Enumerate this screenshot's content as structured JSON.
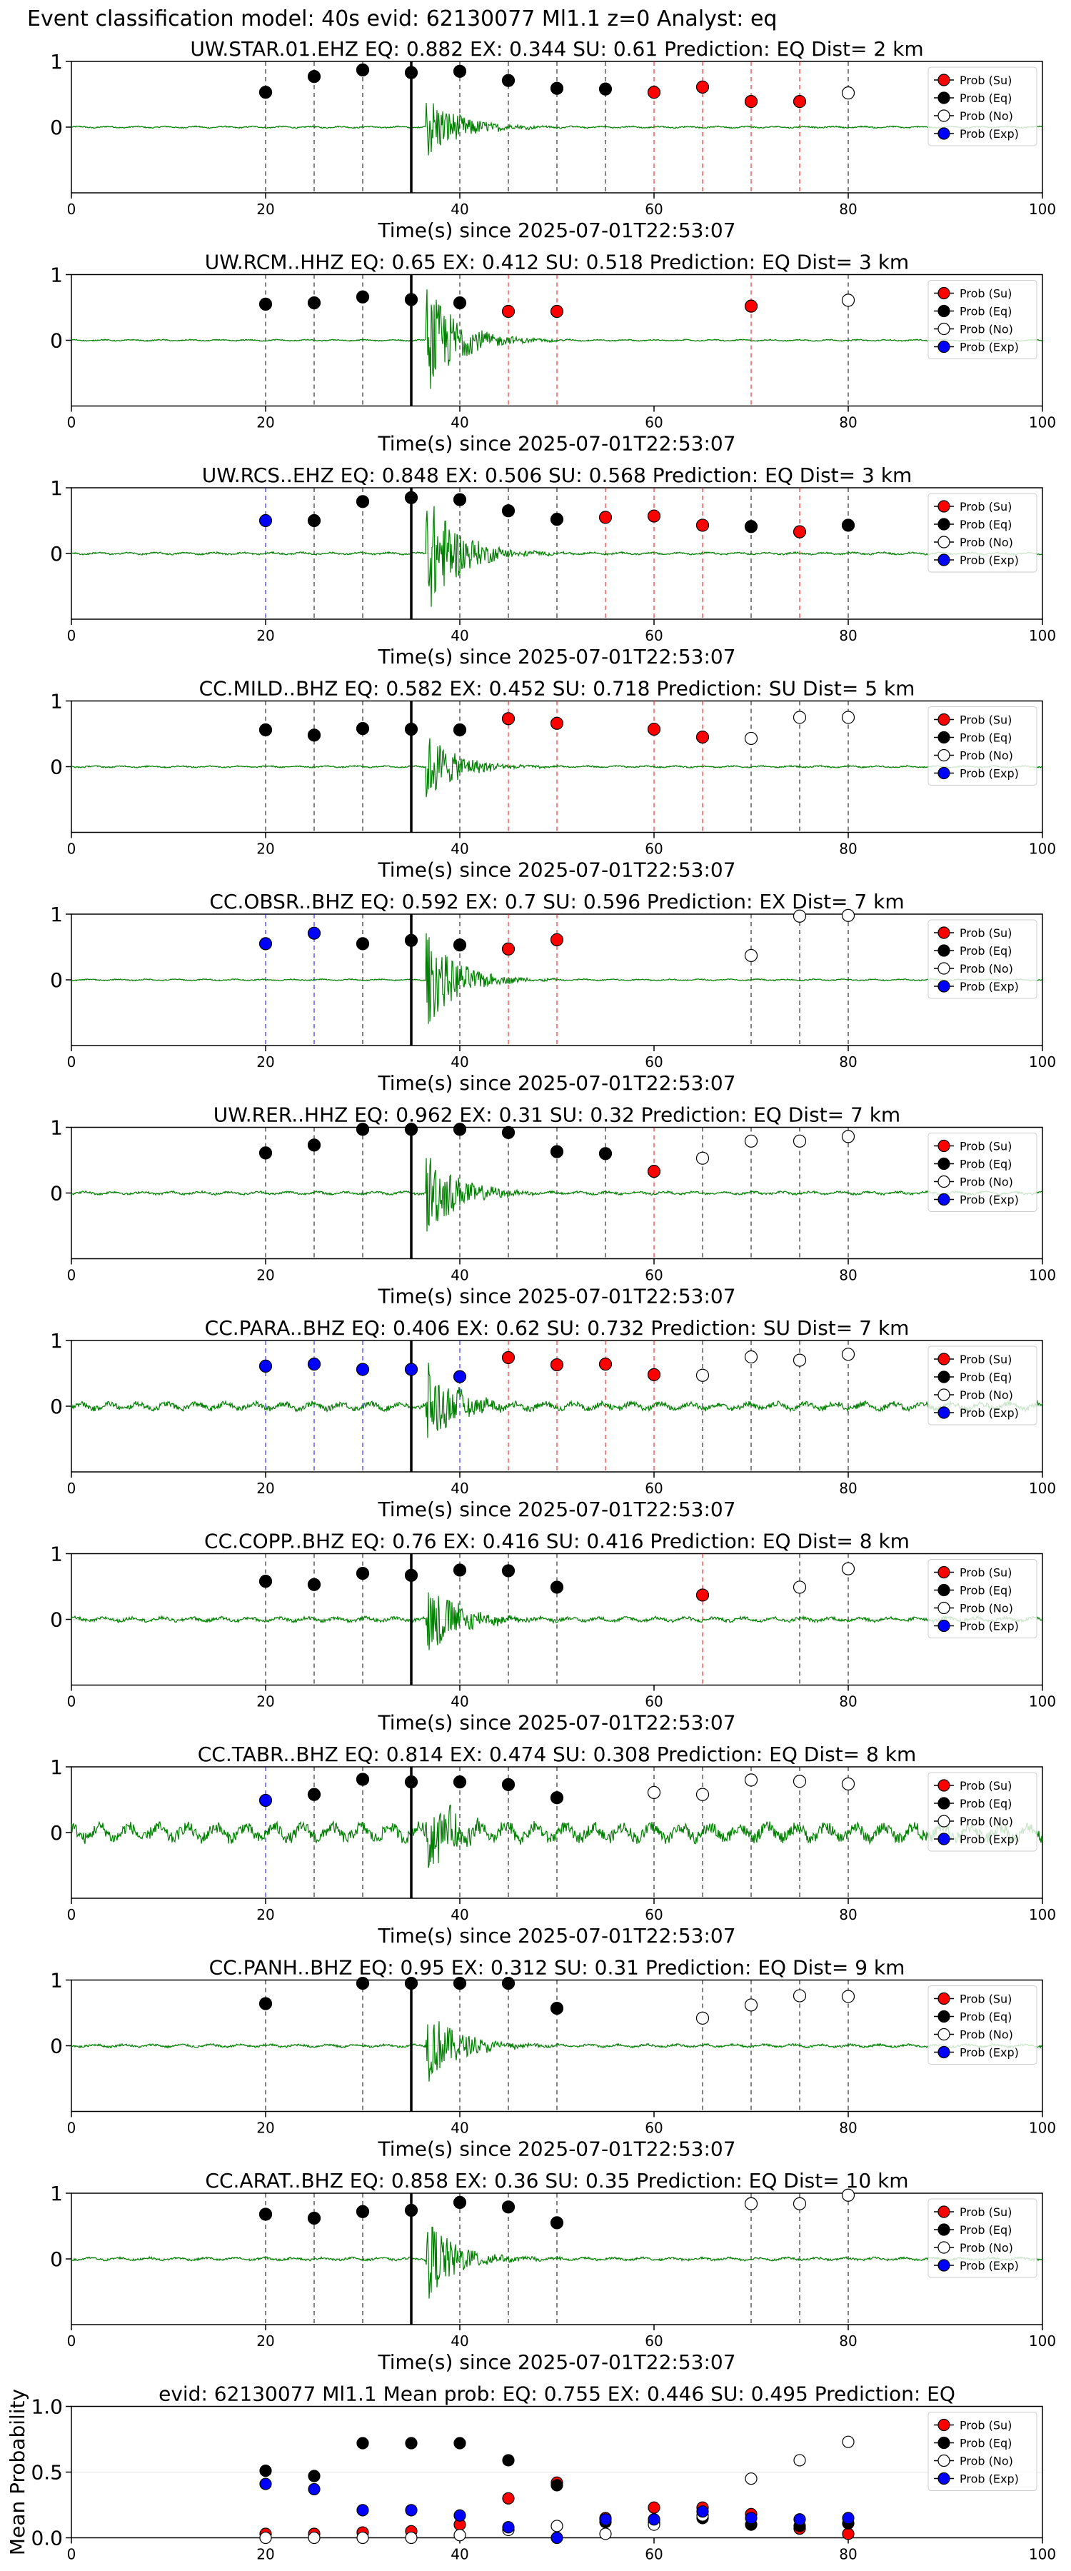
{
  "suptitle": "Event classification model: 40s evid: 62130077 Ml1.1 z=0 Analyst: eq",
  "colors": {
    "trace": "#008000",
    "su": "#ff0000",
    "eq": "#000000",
    "no": "#ffffff",
    "exp": "#0000ff",
    "grid": "#e6e6e6"
  },
  "legend": [
    "Prob (Su)",
    "Prob (Eq)",
    "Prob (No)",
    "Prob (Exp)"
  ],
  "xlabel": "Time(s) since 2025-07-01T22:53:07",
  "chart_data": [
    {
      "type": "scatter",
      "title": "UW.STAR.01.EHZ   EQ: 0.882  EX: 0.344  SU: 0.61    Prediction: EQ    Dist= 2 km",
      "xlim": [
        0,
        100
      ],
      "ylim": [
        -1,
        1
      ],
      "xticks": [
        0,
        20,
        40,
        60,
        80,
        100
      ],
      "yticks": [
        1,
        0
      ],
      "pick": 35,
      "amp": 0.55,
      "noise": 0.012,
      "points": [
        {
          "x": 20,
          "y": 0.53,
          "c": "eq"
        },
        {
          "x": 25,
          "y": 0.77,
          "c": "eq"
        },
        {
          "x": 30,
          "y": 0.87,
          "c": "eq"
        },
        {
          "x": 35,
          "y": 0.83,
          "c": "eq"
        },
        {
          "x": 40,
          "y": 0.85,
          "c": "eq"
        },
        {
          "x": 45,
          "y": 0.71,
          "c": "eq"
        },
        {
          "x": 50,
          "y": 0.59,
          "c": "eq"
        },
        {
          "x": 55,
          "y": 0.58,
          "c": "eq"
        },
        {
          "x": 60,
          "y": 0.53,
          "c": "su"
        },
        {
          "x": 65,
          "y": 0.61,
          "c": "su"
        },
        {
          "x": 70,
          "y": 0.39,
          "c": "su"
        },
        {
          "x": 75,
          "y": 0.39,
          "c": "su"
        },
        {
          "x": 80,
          "y": 0.52,
          "c": "no"
        }
      ]
    },
    {
      "type": "scatter",
      "title": "UW.RCM..HHZ   EQ: 0.65  EX: 0.412  SU: 0.518   Prediction: EQ    Dist= 3 km",
      "xlim": [
        0,
        100
      ],
      "ylim": [
        -1,
        1
      ],
      "xticks": [
        0,
        20,
        40,
        60,
        80,
        100
      ],
      "yticks": [
        1,
        0
      ],
      "pick": 35,
      "amp": 0.9,
      "noise": 0.01,
      "points": [
        {
          "x": 20,
          "y": 0.55,
          "c": "eq"
        },
        {
          "x": 25,
          "y": 0.57,
          "c": "eq"
        },
        {
          "x": 30,
          "y": 0.66,
          "c": "eq"
        },
        {
          "x": 35,
          "y": 0.62,
          "c": "eq"
        },
        {
          "x": 40,
          "y": 0.57,
          "c": "eq"
        },
        {
          "x": 45,
          "y": 0.44,
          "c": "su"
        },
        {
          "x": 50,
          "y": 0.44,
          "c": "su"
        },
        {
          "x": 70,
          "y": 0.52,
          "c": "su"
        },
        {
          "x": 80,
          "y": 0.61,
          "c": "no"
        }
      ]
    },
    {
      "type": "scatter",
      "title": "UW.RCS..EHZ   EQ: 0.848  EX: 0.506  SU: 0.568   Prediction: EQ    Dist= 3 km",
      "xlim": [
        0,
        100
      ],
      "ylim": [
        -1,
        1
      ],
      "xticks": [
        0,
        20,
        40,
        60,
        80,
        100
      ],
      "yticks": [
        1,
        0
      ],
      "pick": 35,
      "amp": 1.0,
      "noise": 0.015,
      "points": [
        {
          "x": 20,
          "y": 0.5,
          "c": "exp"
        },
        {
          "x": 25,
          "y": 0.5,
          "c": "eq"
        },
        {
          "x": 30,
          "y": 0.79,
          "c": "eq"
        },
        {
          "x": 35,
          "y": 0.85,
          "c": "eq"
        },
        {
          "x": 40,
          "y": 0.82,
          "c": "eq"
        },
        {
          "x": 45,
          "y": 0.65,
          "c": "eq"
        },
        {
          "x": 50,
          "y": 0.52,
          "c": "eq"
        },
        {
          "x": 55,
          "y": 0.55,
          "c": "su"
        },
        {
          "x": 60,
          "y": 0.57,
          "c": "su"
        },
        {
          "x": 65,
          "y": 0.43,
          "c": "su"
        },
        {
          "x": 70,
          "y": 0.41,
          "c": "eq"
        },
        {
          "x": 75,
          "y": 0.33,
          "c": "su"
        },
        {
          "x": 80,
          "y": 0.43,
          "c": "eq"
        }
      ]
    },
    {
      "type": "scatter",
      "title": "CC.MILD..BHZ   EQ: 0.582  EX: 0.452  SU: 0.718   Prediction: SU    Dist= 5 km",
      "xlim": [
        0,
        100
      ],
      "ylim": [
        -1,
        1
      ],
      "xticks": [
        0,
        20,
        40,
        60,
        80,
        100
      ],
      "yticks": [
        1,
        0
      ],
      "pick": 35,
      "amp": 0.55,
      "noise": 0.012,
      "points": [
        {
          "x": 20,
          "y": 0.56,
          "c": "eq"
        },
        {
          "x": 25,
          "y": 0.48,
          "c": "eq"
        },
        {
          "x": 30,
          "y": 0.58,
          "c": "eq"
        },
        {
          "x": 35,
          "y": 0.57,
          "c": "eq"
        },
        {
          "x": 40,
          "y": 0.56,
          "c": "eq"
        },
        {
          "x": 45,
          "y": 0.73,
          "c": "su"
        },
        {
          "x": 50,
          "y": 0.66,
          "c": "su"
        },
        {
          "x": 60,
          "y": 0.57,
          "c": "su"
        },
        {
          "x": 65,
          "y": 0.45,
          "c": "su"
        },
        {
          "x": 70,
          "y": 0.43,
          "c": "no"
        },
        {
          "x": 75,
          "y": 0.75,
          "c": "no"
        },
        {
          "x": 80,
          "y": 0.75,
          "c": "no"
        }
      ]
    },
    {
      "type": "scatter",
      "title": "CC.OBSR..BHZ   EQ: 0.592  EX: 0.7  SU: 0.596   Prediction: EX    Dist= 7 km",
      "xlim": [
        0,
        100
      ],
      "ylim": [
        -1,
        1
      ],
      "xticks": [
        0,
        20,
        40,
        60,
        80,
        100
      ],
      "yticks": [
        1,
        0
      ],
      "pick": 35,
      "amp": 0.75,
      "noise": 0.01,
      "points": [
        {
          "x": 20,
          "y": 0.55,
          "c": "exp"
        },
        {
          "x": 25,
          "y": 0.71,
          "c": "exp"
        },
        {
          "x": 30,
          "y": 0.55,
          "c": "eq"
        },
        {
          "x": 35,
          "y": 0.6,
          "c": "eq"
        },
        {
          "x": 40,
          "y": 0.53,
          "c": "eq"
        },
        {
          "x": 45,
          "y": 0.47,
          "c": "su"
        },
        {
          "x": 50,
          "y": 0.61,
          "c": "su"
        },
        {
          "x": 70,
          "y": 0.37,
          "c": "no"
        },
        {
          "x": 75,
          "y": 0.97,
          "c": "no"
        },
        {
          "x": 80,
          "y": 0.98,
          "c": "no"
        }
      ]
    },
    {
      "type": "scatter",
      "title": "UW.RER..HHZ   EQ: 0.962  EX: 0.31  SU: 0.32    Prediction: EQ    Dist= 7 km",
      "xlim": [
        0,
        100
      ],
      "ylim": [
        -1,
        1
      ],
      "xticks": [
        0,
        20,
        40,
        60,
        80,
        100
      ],
      "yticks": [
        1,
        0
      ],
      "pick": 35,
      "amp": 0.7,
      "noise": 0.02,
      "points": [
        {
          "x": 20,
          "y": 0.61,
          "c": "eq"
        },
        {
          "x": 25,
          "y": 0.73,
          "c": "eq"
        },
        {
          "x": 30,
          "y": 0.97,
          "c": "eq"
        },
        {
          "x": 35,
          "y": 0.97,
          "c": "eq"
        },
        {
          "x": 40,
          "y": 0.97,
          "c": "eq"
        },
        {
          "x": 45,
          "y": 0.92,
          "c": "eq"
        },
        {
          "x": 50,
          "y": 0.63,
          "c": "eq"
        },
        {
          "x": 55,
          "y": 0.6,
          "c": "eq"
        },
        {
          "x": 60,
          "y": 0.33,
          "c": "su"
        },
        {
          "x": 65,
          "y": 0.53,
          "c": "no"
        },
        {
          "x": 70,
          "y": 0.79,
          "c": "no"
        },
        {
          "x": 75,
          "y": 0.79,
          "c": "no"
        },
        {
          "x": 80,
          "y": 0.86,
          "c": "no"
        }
      ]
    },
    {
      "type": "scatter",
      "title": "CC.PARA..BHZ   EQ: 0.406  EX: 0.62  SU: 0.732   Prediction: SU    Dist= 7 km",
      "xlim": [
        0,
        100
      ],
      "ylim": [
        -1,
        1
      ],
      "xticks": [
        0,
        20,
        40,
        60,
        80,
        100
      ],
      "yticks": [
        1,
        0
      ],
      "pick": 35,
      "amp": 0.65,
      "noise": 0.05,
      "points": [
        {
          "x": 20,
          "y": 0.61,
          "c": "exp"
        },
        {
          "x": 25,
          "y": 0.64,
          "c": "exp"
        },
        {
          "x": 30,
          "y": 0.56,
          "c": "exp"
        },
        {
          "x": 35,
          "y": 0.56,
          "c": "exp"
        },
        {
          "x": 40,
          "y": 0.45,
          "c": "exp"
        },
        {
          "x": 45,
          "y": 0.74,
          "c": "su"
        },
        {
          "x": 50,
          "y": 0.63,
          "c": "su"
        },
        {
          "x": 55,
          "y": 0.64,
          "c": "su"
        },
        {
          "x": 60,
          "y": 0.48,
          "c": "su"
        },
        {
          "x": 65,
          "y": 0.47,
          "c": "no"
        },
        {
          "x": 70,
          "y": 0.75,
          "c": "no"
        },
        {
          "x": 75,
          "y": 0.7,
          "c": "no"
        },
        {
          "x": 80,
          "y": 0.79,
          "c": "no"
        }
      ]
    },
    {
      "type": "scatter",
      "title": "CC.COPP..BHZ   EQ: 0.76  EX: 0.416  SU: 0.416   Prediction: EQ    Dist= 8 km",
      "xlim": [
        0,
        100
      ],
      "ylim": [
        -1,
        1
      ],
      "xticks": [
        0,
        20,
        40,
        60,
        80,
        100
      ],
      "yticks": [
        1,
        0
      ],
      "pick": 35,
      "amp": 0.65,
      "noise": 0.03,
      "points": [
        {
          "x": 20,
          "y": 0.58,
          "c": "eq"
        },
        {
          "x": 25,
          "y": 0.53,
          "c": "eq"
        },
        {
          "x": 30,
          "y": 0.7,
          "c": "eq"
        },
        {
          "x": 35,
          "y": 0.67,
          "c": "eq"
        },
        {
          "x": 40,
          "y": 0.75,
          "c": "eq"
        },
        {
          "x": 45,
          "y": 0.74,
          "c": "eq"
        },
        {
          "x": 50,
          "y": 0.49,
          "c": "eq"
        },
        {
          "x": 65,
          "y": 0.37,
          "c": "su"
        },
        {
          "x": 75,
          "y": 0.49,
          "c": "no"
        },
        {
          "x": 80,
          "y": 0.77,
          "c": "no"
        }
      ]
    },
    {
      "type": "scatter",
      "title": "CC.TABR..BHZ   EQ: 0.814  EX: 0.474  SU: 0.308   Prediction: EQ    Dist= 8 km",
      "xlim": [
        0,
        100
      ],
      "ylim": [
        -1,
        1
      ],
      "xticks": [
        0,
        20,
        40,
        60,
        80,
        100
      ],
      "yticks": [
        1,
        0
      ],
      "pick": 35,
      "amp": 0.6,
      "noise": 0.11,
      "points": [
        {
          "x": 20,
          "y": 0.49,
          "c": "exp"
        },
        {
          "x": 25,
          "y": 0.58,
          "c": "eq"
        },
        {
          "x": 30,
          "y": 0.81,
          "c": "eq"
        },
        {
          "x": 35,
          "y": 0.77,
          "c": "eq"
        },
        {
          "x": 40,
          "y": 0.77,
          "c": "eq"
        },
        {
          "x": 45,
          "y": 0.73,
          "c": "eq"
        },
        {
          "x": 50,
          "y": 0.53,
          "c": "eq"
        },
        {
          "x": 60,
          "y": 0.61,
          "c": "no"
        },
        {
          "x": 65,
          "y": 0.58,
          "c": "no"
        },
        {
          "x": 70,
          "y": 0.8,
          "c": "no"
        },
        {
          "x": 75,
          "y": 0.78,
          "c": "no"
        },
        {
          "x": 80,
          "y": 0.74,
          "c": "no"
        }
      ]
    },
    {
      "type": "scatter",
      "title": "CC.PANH..BHZ   EQ: 0.95  EX: 0.312  SU: 0.31    Prediction: EQ    Dist= 9 km",
      "xlim": [
        0,
        100
      ],
      "ylim": [
        -1,
        1
      ],
      "xticks": [
        0,
        20,
        40,
        60,
        80,
        100
      ],
      "yticks": [
        1,
        0
      ],
      "pick": 35,
      "amp": 0.6,
      "noise": 0.02,
      "points": [
        {
          "x": 20,
          "y": 0.64,
          "c": "eq"
        },
        {
          "x": 30,
          "y": 0.95,
          "c": "eq"
        },
        {
          "x": 35,
          "y": 0.95,
          "c": "eq"
        },
        {
          "x": 40,
          "y": 0.95,
          "c": "eq"
        },
        {
          "x": 45,
          "y": 0.95,
          "c": "eq"
        },
        {
          "x": 50,
          "y": 0.57,
          "c": "eq"
        },
        {
          "x": 65,
          "y": 0.42,
          "c": "no"
        },
        {
          "x": 70,
          "y": 0.62,
          "c": "no"
        },
        {
          "x": 75,
          "y": 0.76,
          "c": "no"
        },
        {
          "x": 80,
          "y": 0.75,
          "c": "no"
        }
      ]
    },
    {
      "type": "scatter",
      "title": "CC.ARAT..BHZ   EQ: 0.858  EX: 0.36  SU: 0.35    Prediction: EQ    Dist= 10 km",
      "xlim": [
        0,
        100
      ],
      "ylim": [
        -1,
        1
      ],
      "xticks": [
        0,
        20,
        40,
        60,
        80,
        100
      ],
      "yticks": [
        1,
        0
      ],
      "pick": 35,
      "amp": 0.65,
      "noise": 0.02,
      "points": [
        {
          "x": 20,
          "y": 0.68,
          "c": "eq"
        },
        {
          "x": 25,
          "y": 0.62,
          "c": "eq"
        },
        {
          "x": 30,
          "y": 0.72,
          "c": "eq"
        },
        {
          "x": 35,
          "y": 0.74,
          "c": "eq"
        },
        {
          "x": 40,
          "y": 0.86,
          "c": "eq"
        },
        {
          "x": 45,
          "y": 0.79,
          "c": "eq"
        },
        {
          "x": 50,
          "y": 0.55,
          "c": "eq"
        },
        {
          "x": 70,
          "y": 0.84,
          "c": "no"
        },
        {
          "x": 75,
          "y": 0.84,
          "c": "no"
        },
        {
          "x": 80,
          "y": 0.97,
          "c": "no"
        }
      ]
    },
    {
      "type": "scatter",
      "title": "evid: 62130077  Ml1.1   Mean prob:   EQ: 0.755  EX: 0.446  SU: 0.495   Prediction: EQ",
      "ylabel": "Mean Probability",
      "xlim": [
        0,
        100
      ],
      "ylim": [
        0,
        1
      ],
      "xticks": [
        0,
        20,
        40,
        60,
        80,
        100
      ],
      "yticks": [
        1.0,
        0.5,
        0.0
      ],
      "ytick_labels": [
        "1.0",
        "0.5",
        "0.0"
      ],
      "summary": true,
      "series": [
        {
          "name": "Prob (Su)",
          "c": "su",
          "x": [
            20,
            25,
            30,
            35,
            40,
            45,
            50,
            55,
            60,
            65,
            70,
            75,
            80
          ],
          "y": [
            0.03,
            0.03,
            0.04,
            0.05,
            0.1,
            0.3,
            0.42,
            0.15,
            0.23,
            0.23,
            0.18,
            0.07,
            0.03
          ]
        },
        {
          "name": "Prob (Eq)",
          "c": "eq",
          "x": [
            20,
            25,
            30,
            35,
            40,
            45,
            50,
            55,
            60,
            65,
            70,
            75,
            80
          ],
          "y": [
            0.51,
            0.47,
            0.72,
            0.72,
            0.72,
            0.59,
            0.4,
            0.12,
            0.12,
            0.15,
            0.1,
            0.09,
            0.11
          ]
        },
        {
          "name": "Prob (No)",
          "c": "no",
          "x": [
            20,
            25,
            30,
            35,
            40,
            45,
            50,
            55,
            60,
            65,
            70,
            75,
            80
          ],
          "y": [
            0.0,
            0.0,
            0.0,
            0.0,
            0.02,
            0.06,
            0.09,
            0.03,
            0.1,
            0.17,
            0.45,
            0.59,
            0.73
          ]
        },
        {
          "name": "Prob (Exp)",
          "c": "exp",
          "x": [
            20,
            25,
            30,
            35,
            40,
            45,
            50,
            55,
            60,
            65,
            70,
            75,
            80
          ],
          "y": [
            0.41,
            0.37,
            0.21,
            0.21,
            0.17,
            0.08,
            0.0,
            0.14,
            0.14,
            0.2,
            0.15,
            0.14,
            0.15
          ]
        }
      ]
    }
  ]
}
